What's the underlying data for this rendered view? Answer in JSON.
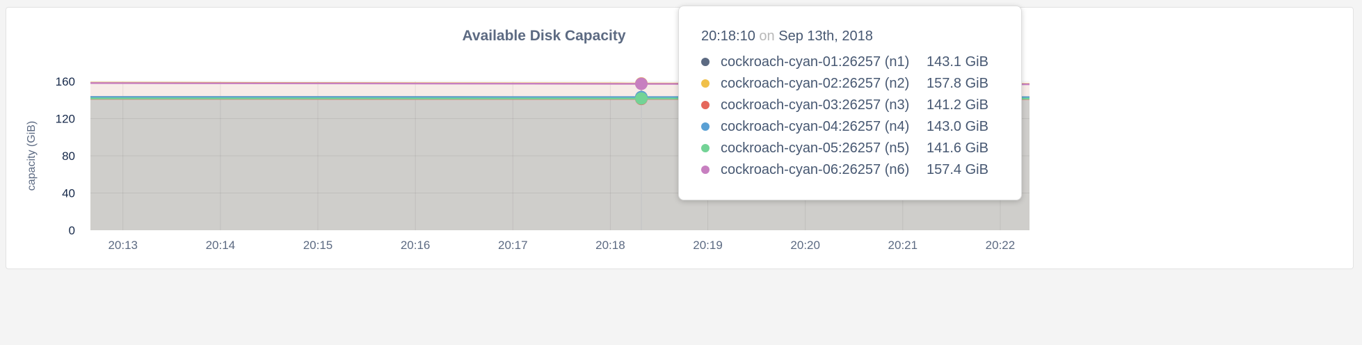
{
  "chart_data": {
    "type": "area",
    "title": "Available Disk Capacity",
    "ylabel": "capacity (GiB)",
    "xlabel": "",
    "ylim": [
      0,
      160
    ],
    "yticks": [
      "0",
      "40",
      "80",
      "120",
      "160"
    ],
    "ytick_values": [
      0,
      40,
      80,
      120,
      160
    ],
    "xlim": [
      "20:12:40",
      "20:22:18"
    ],
    "xticks": [
      "20:13",
      "20:14",
      "20:15",
      "20:16",
      "20:17",
      "20:18",
      "20:19",
      "20:20",
      "20:21",
      "20:22"
    ],
    "grid": true,
    "hover_time": "20:18:10",
    "series": [
      {
        "name": "cockroach-cyan-01:26257 (n1)",
        "color": "#5c6a82",
        "x": [
          "20:12:40",
          "20:18:10",
          "20:22:18"
        ],
        "values": [
          143.2,
          143.1,
          143.0
        ]
      },
      {
        "name": "cockroach-cyan-02:26257 (n2)",
        "color": "#f0c04a",
        "x": [
          "20:12:40",
          "20:18:10",
          "20:22:18"
        ],
        "values": [
          158.6,
          157.8,
          157.3
        ]
      },
      {
        "name": "cockroach-cyan-03:26257 (n3)",
        "color": "#e5675b",
        "x": [
          "20:12:40",
          "20:18:10",
          "20:22:18"
        ],
        "values": [
          141.3,
          141.2,
          141.1
        ]
      },
      {
        "name": "cockroach-cyan-04:26257 (n4)",
        "color": "#5aa0d4",
        "x": [
          "20:12:40",
          "20:18:10",
          "20:22:18"
        ],
        "values": [
          143.1,
          143.0,
          142.9
        ]
      },
      {
        "name": "cockroach-cyan-05:26257 (n5)",
        "color": "#73d396",
        "x": [
          "20:12:40",
          "20:18:10",
          "20:22:18"
        ],
        "values": [
          141.7,
          141.6,
          141.5
        ]
      },
      {
        "name": "cockroach-cyan-06:26257 (n6)",
        "color": "#c77fc0",
        "x": [
          "20:12:40",
          "20:18:10",
          "20:22:18"
        ],
        "values": [
          158.2,
          157.4,
          156.9
        ]
      }
    ]
  },
  "tooltip": {
    "time": "20:18:10",
    "on": "on",
    "date": "Sep 13th, 2018",
    "rows": [
      {
        "label": "cockroach-cyan-01:26257 (n1)",
        "value": "143.1 GiB",
        "color": "#5c6a82"
      },
      {
        "label": "cockroach-cyan-02:26257 (n2)",
        "value": "157.8 GiB",
        "color": "#f0c04a"
      },
      {
        "label": "cockroach-cyan-03:26257 (n3)",
        "value": "141.2 GiB",
        "color": "#e5675b"
      },
      {
        "label": "cockroach-cyan-04:26257 (n4)",
        "value": "143.0 GiB",
        "color": "#5aa0d4"
      },
      {
        "label": "cockroach-cyan-05:26257 (n5)",
        "value": "141.6 GiB",
        "color": "#73d396"
      },
      {
        "label": "cockroach-cyan-06:26257 (n6)",
        "value": "157.4 GiB",
        "color": "#c77fc0"
      }
    ]
  }
}
